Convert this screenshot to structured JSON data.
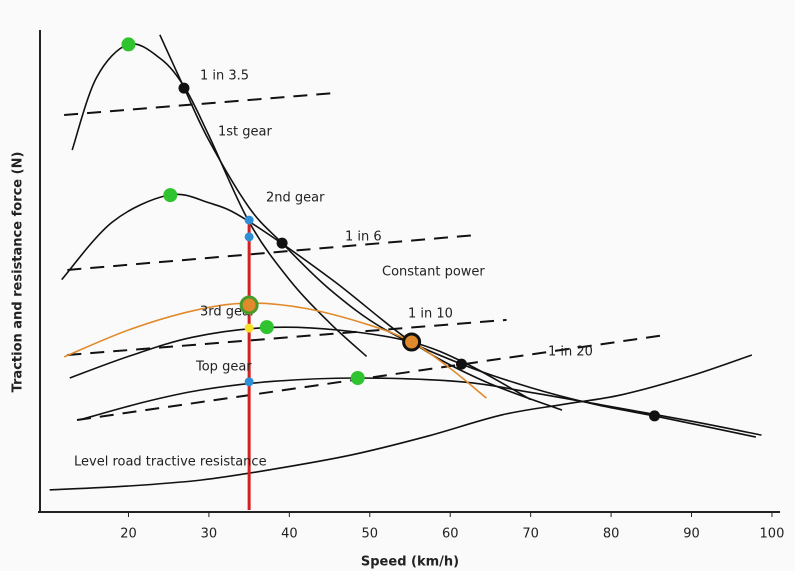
{
  "chart_data": {
    "type": "line",
    "x_label": "Speed (km/h)",
    "y_label": "Traction and resistance force (N)",
    "xlim": [
      9,
      101
    ],
    "ylim": [
      0,
      100
    ],
    "xticks": [
      20,
      30,
      40,
      50,
      60,
      70,
      80,
      90,
      100
    ],
    "series": [
      {
        "name": "1st gear",
        "color": "#111111",
        "style": "solid",
        "x": [
          13,
          16,
          20,
          24,
          27,
          30,
          35,
          40,
          45,
          49.6
        ],
        "values": [
          75,
          90,
          97,
          94,
          88,
          78,
          60,
          48,
          39,
          32
        ]
      },
      {
        "name": "2nd gear",
        "color": "#111111",
        "style": "solid",
        "x": [
          11.7,
          18,
          25,
          30,
          34.7,
          45.3,
          55.2,
          64,
          73.9
        ],
        "values": [
          48,
          60,
          65.6,
          64,
          60.4,
          48,
          35,
          27,
          20.8
        ]
      },
      {
        "name": "3rd gear",
        "color": "#111111",
        "style": "solid",
        "x": [
          12.7,
          20,
          28,
          37.2,
          46,
          55.2,
          62,
          70
        ],
        "values": [
          27.5,
          32,
          36,
          38,
          37.5,
          35,
          30.5,
          23
        ]
      },
      {
        "name": "Top gear",
        "color": "#111111",
        "style": "solid",
        "x": [
          14,
          22,
          29,
          38,
          48.5,
          61.4,
          70,
          78.8,
          90,
          98.7
        ],
        "values": [
          18.8,
          22.5,
          25,
          26.8,
          27.5,
          26.7,
          24.5,
          21.9,
          18.5,
          15.6
        ]
      },
      {
        "name": "Constant power",
        "color": "#111111",
        "style": "solid",
        "x": [
          23.9,
          26.9,
          30,
          35,
          39.1,
          45,
          52,
          61.4,
          70,
          78,
          85.4,
          92,
          98
        ],
        "values": [
          99,
          88,
          77,
          63,
          55.6,
          46,
          37.5,
          30.4,
          25.5,
          22,
          19.6,
          17.3,
          15.2
        ]
      },
      {
        "name": "Level road tractive resistance",
        "color": "#111111",
        "style": "solid",
        "x": [
          10.2,
          20,
          29.1,
          38,
          47.8,
          57,
          66.4,
          74,
          81.3,
          90,
          97.5
        ],
        "values": [
          4.2,
          5,
          6.25,
          8.5,
          11.5,
          15.3,
          19.8,
          22,
          24,
          28,
          32.3
        ]
      },
      {
        "name": "1 in 3.5",
        "color": "#111111",
        "style": "dashed",
        "x": [
          12,
          45.9
        ],
        "values": [
          82.3,
          86.9
        ]
      },
      {
        "name": "1 in 6",
        "color": "#111111",
        "style": "dashed",
        "x": [
          12.4,
          63.3
        ],
        "values": [
          50,
          57.3
        ]
      },
      {
        "name": "1 in 10",
        "color": "#111111",
        "style": "dashed",
        "x": [
          12.4,
          67
        ],
        "values": [
          32.3,
          39.6
        ]
      },
      {
        "name": "1 in 20",
        "color": "#111111",
        "style": "dashed",
        "x": [
          13.6,
          86.9
        ],
        "values": [
          18.75,
          36.5
        ]
      },
      {
        "color": "#e08a2c",
        "style": "solid",
        "x": [
          12,
          20,
          28,
          34.7,
          42,
          50,
          55.2,
          60,
          64.5
        ],
        "values": [
          31.9,
          37.5,
          41.5,
          43.1,
          42,
          38.5,
          35,
          29.5,
          23.3
        ]
      },
      {
        "color": "#d42020",
        "style": "solid",
        "x": [
          35,
          35
        ],
        "values": [
          0,
          61
        ]
      }
    ],
    "points": [
      {
        "x": 20,
        "y": 97,
        "color": "#2fc42f"
      },
      {
        "x": 25.2,
        "y": 65.6,
        "color": "#2fc42f"
      },
      {
        "x": 37.2,
        "y": 38.1,
        "color": "#2fc42f"
      },
      {
        "x": 48.5,
        "y": 27.5,
        "color": "#2fc42f"
      },
      {
        "x": 26.9,
        "y": 87.9,
        "color": "#111111"
      },
      {
        "x": 39.1,
        "y": 55.6,
        "color": "#111111"
      },
      {
        "x": 61.4,
        "y": 30.4,
        "color": "#111111"
      },
      {
        "x": 85.4,
        "y": 19.6,
        "color": "#111111"
      },
      {
        "x": 35,
        "y": 60.4,
        "color": "#2e8fd6"
      },
      {
        "x": 35,
        "y": 56.9,
        "color": "#2e8fd6"
      },
      {
        "x": 35,
        "y": 26.7,
        "color": "#2e8fd6"
      },
      {
        "x": 35,
        "y": 37.9,
        "color": "#f5e02a"
      },
      {
        "x": 35,
        "y": 42.7,
        "color": "#e08a2c",
        "ring": "#4a9a2a"
      },
      {
        "x": 55.2,
        "y": 35,
        "color": "#e08a2c",
        "ring": "#111111"
      }
    ]
  }
}
